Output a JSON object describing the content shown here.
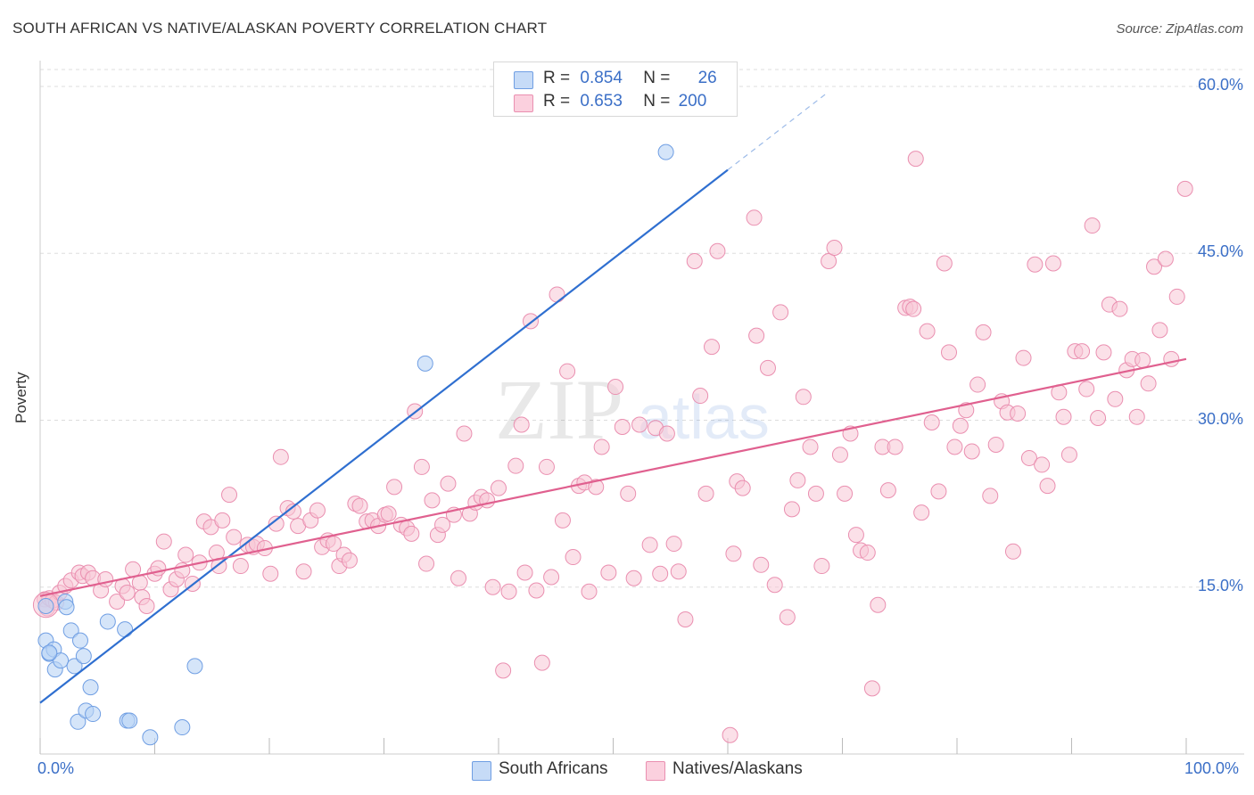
{
  "title": "SOUTH AFRICAN VS NATIVE/ALASKAN POVERTY CORRELATION CHART",
  "source": "Source: ZipAtlas.com",
  "watermark": {
    "zip": "ZIP",
    "atlas": "atlas"
  },
  "legend": {
    "rows": [
      {
        "r_label": "R =",
        "r_value": "0.854",
        "n_label": "N =",
        "n_value": "26",
        "color": "#9ec0f0"
      },
      {
        "r_label": "R =",
        "r_value": "0.653",
        "n_label": "N =",
        "n_value": "200",
        "color": "#f5a9c2"
      }
    ]
  },
  "bottom_legend": [
    {
      "label": "South Africans",
      "color": "#9ec0f0"
    },
    {
      "label": "Natives/Alaskans",
      "color": "#f5a9c2"
    }
  ],
  "colors": {
    "blue": "#2f6fd0",
    "pink": "#e0608f",
    "blue_fill": "#b9d3f5",
    "pink_fill": "#f8c6d6",
    "tick_text": "#3b6fc7"
  },
  "chart_data": {
    "type": "scatter",
    "title": "SOUTH AFRICAN VS NATIVE/ALASKAN POVERTY CORRELATION CHART",
    "xlabel": "",
    "ylabel": "Poverty",
    "xlim": [
      0,
      100
    ],
    "ylim": [
      0,
      60
    ],
    "x_tick_labels": [
      "0.0%",
      "100.0%"
    ],
    "y_tick_labels": [
      "15.0%",
      "30.0%",
      "45.0%",
      "60.0%"
    ],
    "y_ticks": [
      15,
      30,
      45,
      60
    ],
    "grid": true,
    "series": [
      {
        "name": "South Africans",
        "r": 0.854,
        "n": 26,
        "trend": {
          "x0": 0,
          "y0": 4.6,
          "x1": 60,
          "y1": 52.5,
          "dashed_to_x": 68.5
        },
        "points": [
          [
            0.5,
            13.3
          ],
          [
            0.5,
            10.2
          ],
          [
            0.8,
            9.0
          ],
          [
            1.2,
            9.4
          ],
          [
            1.3,
            7.6
          ],
          [
            1.8,
            8.4
          ],
          [
            2.2,
            13.7
          ],
          [
            2.3,
            13.2
          ],
          [
            2.7,
            11.1
          ],
          [
            3.0,
            7.9
          ],
          [
            3.3,
            2.9
          ],
          [
            3.5,
            10.2
          ],
          [
            3.8,
            8.8
          ],
          [
            4.0,
            3.9
          ],
          [
            4.4,
            6.0
          ],
          [
            4.6,
            3.6
          ],
          [
            5.9,
            11.9
          ],
          [
            7.4,
            11.2
          ],
          [
            7.6,
            3.0
          ],
          [
            7.8,
            3.0
          ],
          [
            9.6,
            1.5
          ],
          [
            12.4,
            2.4
          ],
          [
            13.5,
            7.9
          ],
          [
            33.6,
            35.1
          ],
          [
            54.6,
            54.1
          ],
          [
            0.8,
            9.1
          ]
        ]
      },
      {
        "name": "Natives/Alaskans",
        "r": 0.653,
        "n": 200,
        "trend": {
          "x0": 0,
          "y0": 14.2,
          "x1": 100,
          "y1": 35.5
        },
        "points": [
          [
            0.4,
            13.9
          ],
          [
            0.6,
            13.1
          ],
          [
            0.8,
            14.0
          ],
          [
            1.1,
            13.8
          ],
          [
            1.4,
            13.6
          ],
          [
            1.7,
            14.5
          ],
          [
            2.2,
            15.1
          ],
          [
            2.7,
            15.6
          ],
          [
            3.4,
            16.3
          ],
          [
            3.7,
            16.0
          ],
          [
            4.2,
            16.3
          ],
          [
            4.6,
            15.8
          ],
          [
            5.3,
            14.7
          ],
          [
            5.7,
            15.7
          ],
          [
            6.7,
            13.7
          ],
          [
            7.2,
            15.1
          ],
          [
            7.6,
            14.5
          ],
          [
            8.1,
            16.6
          ],
          [
            8.7,
            15.4
          ],
          [
            8.9,
            14.1
          ],
          [
            9.3,
            13.3
          ],
          [
            10.0,
            16.2
          ],
          [
            10.3,
            16.7
          ],
          [
            10.8,
            19.1
          ],
          [
            11.4,
            14.8
          ],
          [
            11.9,
            15.7
          ],
          [
            12.4,
            16.5
          ],
          [
            12.7,
            17.9
          ],
          [
            13.3,
            15.3
          ],
          [
            13.9,
            17.2
          ],
          [
            14.3,
            20.9
          ],
          [
            14.9,
            20.4
          ],
          [
            15.4,
            18.1
          ],
          [
            15.6,
            16.9
          ],
          [
            15.9,
            21.0
          ],
          [
            16.5,
            23.3
          ],
          [
            16.9,
            19.5
          ],
          [
            17.5,
            16.9
          ],
          [
            18.1,
            18.8
          ],
          [
            18.6,
            18.6
          ],
          [
            18.9,
            18.9
          ],
          [
            19.6,
            18.5
          ],
          [
            20.1,
            16.2
          ],
          [
            20.6,
            20.7
          ],
          [
            21.0,
            26.7
          ],
          [
            21.6,
            22.1
          ],
          [
            22.1,
            21.8
          ],
          [
            22.5,
            20.5
          ],
          [
            23.0,
            16.4
          ],
          [
            23.6,
            21.0
          ],
          [
            24.2,
            21.9
          ],
          [
            24.6,
            18.6
          ],
          [
            25.1,
            19.2
          ],
          [
            25.6,
            18.9
          ],
          [
            26.1,
            16.9
          ],
          [
            26.5,
            17.9
          ],
          [
            27.0,
            17.4
          ],
          [
            27.5,
            22.5
          ],
          [
            27.9,
            22.3
          ],
          [
            28.5,
            20.9
          ],
          [
            29.0,
            21.0
          ],
          [
            29.5,
            20.5
          ],
          [
            30.1,
            21.5
          ],
          [
            30.4,
            21.6
          ],
          [
            30.9,
            24.0
          ],
          [
            31.5,
            20.6
          ],
          [
            32.0,
            20.3
          ],
          [
            32.4,
            19.8
          ],
          [
            32.7,
            30.8
          ],
          [
            33.3,
            25.8
          ],
          [
            33.7,
            17.1
          ],
          [
            34.2,
            22.8
          ],
          [
            34.7,
            19.7
          ],
          [
            35.1,
            20.6
          ],
          [
            35.6,
            24.3
          ],
          [
            36.1,
            21.5
          ],
          [
            36.5,
            15.8
          ],
          [
            37.0,
            28.8
          ],
          [
            37.5,
            21.6
          ],
          [
            38.0,
            22.6
          ],
          [
            38.5,
            23.1
          ],
          [
            39.0,
            22.8
          ],
          [
            39.5,
            15.0
          ],
          [
            40.0,
            23.9
          ],
          [
            40.4,
            7.5
          ],
          [
            40.9,
            14.6
          ],
          [
            41.5,
            25.9
          ],
          [
            42.0,
            29.6
          ],
          [
            42.3,
            16.3
          ],
          [
            42.8,
            38.9
          ],
          [
            43.3,
            14.7
          ],
          [
            43.8,
            8.2
          ],
          [
            44.2,
            25.8
          ],
          [
            44.6,
            15.9
          ],
          [
            45.1,
            41.3
          ],
          [
            45.6,
            21.0
          ],
          [
            46.0,
            34.4
          ],
          [
            46.5,
            17.7
          ],
          [
            47.0,
            24.1
          ],
          [
            47.5,
            24.4
          ],
          [
            47.9,
            14.6
          ],
          [
            48.5,
            24.0
          ],
          [
            49.0,
            27.6
          ],
          [
            49.6,
            16.3
          ],
          [
            50.2,
            33.0
          ],
          [
            50.8,
            29.4
          ],
          [
            51.3,
            23.4
          ],
          [
            51.8,
            15.8
          ],
          [
            52.3,
            29.6
          ],
          [
            53.2,
            18.8
          ],
          [
            53.7,
            29.3
          ],
          [
            54.1,
            16.2
          ],
          [
            54.7,
            28.8
          ],
          [
            55.3,
            18.9
          ],
          [
            55.7,
            16.4
          ],
          [
            56.3,
            12.1
          ],
          [
            57.1,
            44.3
          ],
          [
            57.6,
            32.2
          ],
          [
            58.1,
            23.4
          ],
          [
            58.6,
            36.6
          ],
          [
            59.1,
            45.2
          ],
          [
            60.2,
            1.7
          ],
          [
            60.5,
            18.0
          ],
          [
            60.8,
            24.5
          ],
          [
            61.3,
            23.9
          ],
          [
            62.3,
            48.2
          ],
          [
            62.5,
            37.6
          ],
          [
            62.9,
            17.0
          ],
          [
            63.5,
            34.7
          ],
          [
            64.1,
            15.2
          ],
          [
            64.6,
            39.7
          ],
          [
            65.2,
            12.3
          ],
          [
            65.6,
            22.0
          ],
          [
            66.1,
            24.6
          ],
          [
            66.6,
            32.1
          ],
          [
            67.2,
            27.6
          ],
          [
            67.7,
            23.4
          ],
          [
            68.2,
            16.9
          ],
          [
            68.8,
            44.3
          ],
          [
            69.3,
            45.5
          ],
          [
            69.8,
            26.9
          ],
          [
            70.2,
            23.4
          ],
          [
            70.7,
            28.8
          ],
          [
            71.2,
            19.7
          ],
          [
            71.6,
            18.3
          ],
          [
            72.2,
            18.1
          ],
          [
            72.6,
            5.9
          ],
          [
            73.1,
            13.4
          ],
          [
            73.5,
            27.6
          ],
          [
            74.0,
            23.7
          ],
          [
            74.6,
            27.6
          ],
          [
            75.5,
            40.1
          ],
          [
            75.9,
            40.2
          ],
          [
            76.4,
            53.5
          ],
          [
            76.9,
            21.7
          ],
          [
            77.4,
            38.0
          ],
          [
            77.8,
            29.8
          ],
          [
            78.4,
            23.6
          ],
          [
            78.9,
            44.1
          ],
          [
            79.3,
            36.1
          ],
          [
            79.8,
            27.6
          ],
          [
            80.3,
            29.5
          ],
          [
            80.8,
            30.9
          ],
          [
            81.3,
            27.2
          ],
          [
            81.8,
            33.2
          ],
          [
            82.3,
            37.9
          ],
          [
            82.9,
            23.2
          ],
          [
            83.4,
            27.8
          ],
          [
            83.9,
            31.7
          ],
          [
            84.4,
            30.7
          ],
          [
            84.9,
            18.2
          ],
          [
            85.3,
            30.6
          ],
          [
            85.8,
            35.6
          ],
          [
            86.3,
            26.6
          ],
          [
            86.8,
            44.0
          ],
          [
            87.4,
            26.0
          ],
          [
            87.9,
            24.1
          ],
          [
            88.4,
            44.1
          ],
          [
            88.9,
            32.5
          ],
          [
            89.3,
            30.3
          ],
          [
            89.8,
            26.9
          ],
          [
            90.3,
            36.2
          ],
          [
            90.9,
            36.2
          ],
          [
            91.3,
            32.8
          ],
          [
            91.8,
            47.5
          ],
          [
            92.3,
            30.2
          ],
          [
            92.8,
            36.1
          ],
          [
            93.3,
            40.4
          ],
          [
            93.8,
            31.9
          ],
          [
            94.2,
            40.0
          ],
          [
            94.8,
            34.5
          ],
          [
            95.3,
            35.5
          ],
          [
            95.7,
            30.3
          ],
          [
            96.2,
            35.4
          ],
          [
            96.7,
            33.3
          ],
          [
            97.2,
            43.8
          ],
          [
            97.7,
            38.1
          ],
          [
            98.2,
            44.5
          ],
          [
            98.7,
            35.5
          ],
          [
            99.2,
            41.1
          ],
          [
            99.9,
            50.8
          ],
          [
            76.2,
            40.0
          ]
        ]
      }
    ]
  }
}
